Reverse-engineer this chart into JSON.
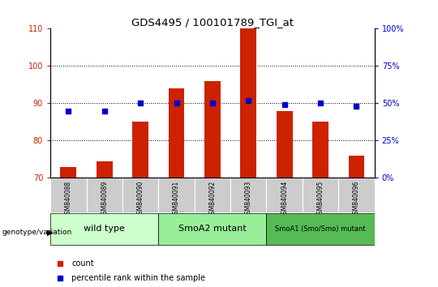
{
  "title": "GDS4495 / 100101789_TGI_at",
  "samples": [
    "GSM840088",
    "GSM840089",
    "GSM840090",
    "GSM840091",
    "GSM840092",
    "GSM840093",
    "GSM840094",
    "GSM840095",
    "GSM840096"
  ],
  "counts": [
    73,
    74.5,
    85,
    94,
    96,
    110,
    88,
    85,
    76
  ],
  "percentile_ranks": [
    45,
    45,
    50,
    50,
    50,
    52,
    49,
    50,
    48
  ],
  "ylim_left": [
    70,
    110
  ],
  "ylim_right": [
    0,
    100
  ],
  "yticks_left": [
    70,
    80,
    90,
    100,
    110
  ],
  "yticks_right": [
    0,
    25,
    50,
    75,
    100
  ],
  "groups": [
    {
      "label": "wild type",
      "start": 0,
      "end": 3,
      "color": "#ccffcc"
    },
    {
      "label": "SmoA2 mutant",
      "start": 3,
      "end": 6,
      "color": "#99ee99"
    },
    {
      "label": "SmoA1 (Smo/Smo) mutant",
      "start": 6,
      "end": 9,
      "color": "#55bb55"
    }
  ],
  "bar_color": "#cc2200",
  "dot_color": "#0000cc",
  "bar_width": 0.45,
  "legend_count_color": "#cc2200",
  "legend_pct_color": "#0000cc",
  "genotype_label": "genotype/variation",
  "tick_bg_color": "#cccccc"
}
